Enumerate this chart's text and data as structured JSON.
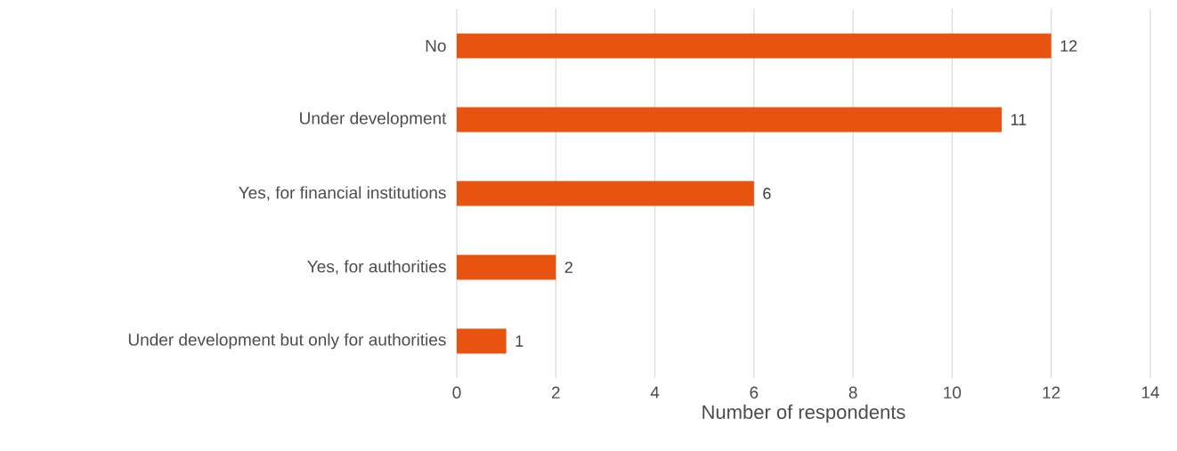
{
  "chart_data": {
    "type": "bar",
    "orientation": "horizontal",
    "categories": [
      "No",
      "Under development",
      "Yes, for financial institutions",
      "Yes, for authorities",
      "Under development but only for authorities"
    ],
    "values": [
      12,
      11,
      6,
      2,
      1
    ],
    "color": "#e8540f",
    "xlim": [
      0,
      14
    ],
    "xticks": [
      0,
      2,
      4,
      6,
      8,
      10,
      12,
      14
    ],
    "xlabel": "Number of respondents",
    "grid": "x",
    "data_labels": true
  }
}
